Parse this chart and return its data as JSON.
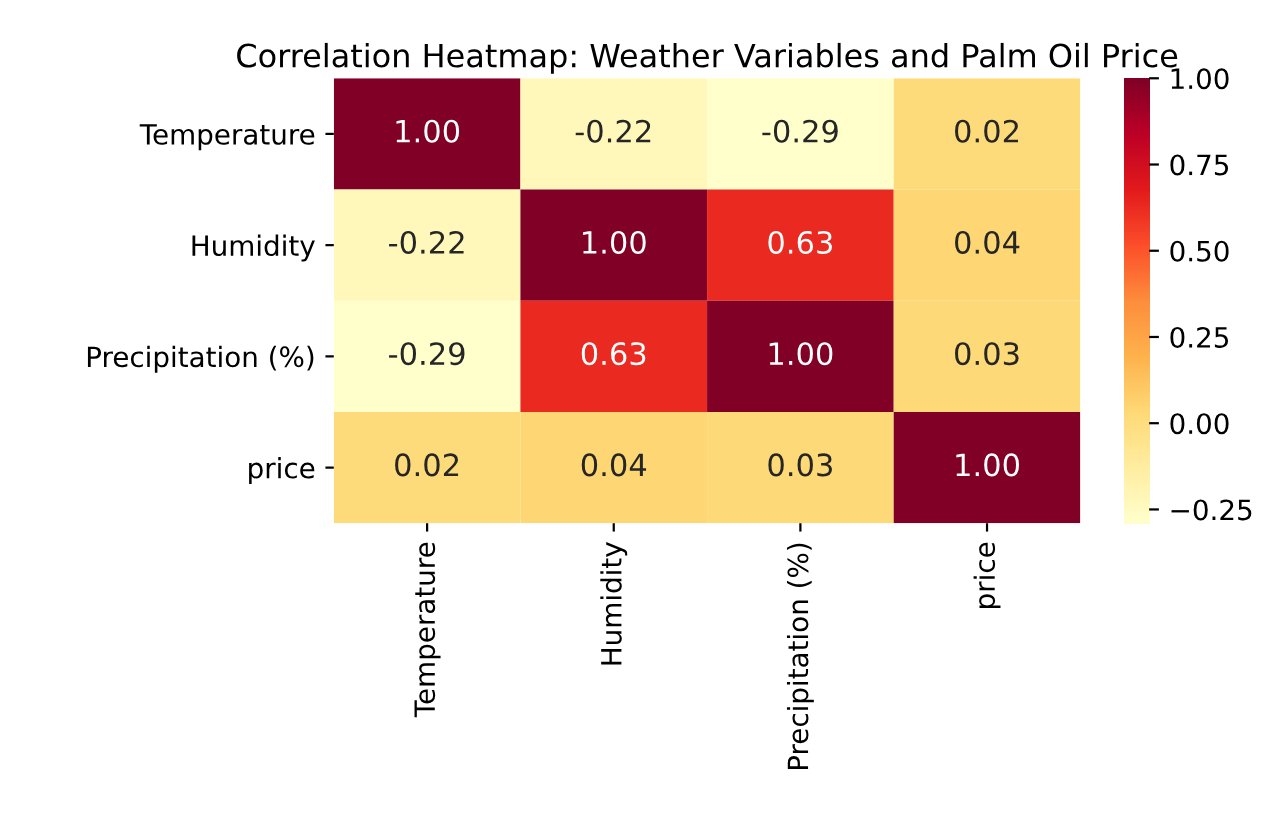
{
  "chart_data": {
    "type": "heatmap",
    "title": "Correlation Heatmap: Weather Variables and Palm Oil Price",
    "categories": [
      "Temperature",
      "Humidity",
      "Precipitation (%)",
      "price"
    ],
    "y_categories": [
      "Temperature",
      "Humidity",
      "Precipitation (%)",
      "price"
    ],
    "cells": [
      [
        1.0,
        -0.22,
        -0.29,
        0.02
      ],
      [
        -0.22,
        1.0,
        0.63,
        0.04
      ],
      [
        -0.29,
        0.63,
        1.0,
        0.03
      ],
      [
        0.02,
        0.04,
        0.03,
        1.0
      ]
    ],
    "cell_labels": [
      [
        "1.00",
        "-0.22",
        "-0.29",
        "0.02"
      ],
      [
        "-0.22",
        "1.00",
        "0.63",
        "0.04"
      ],
      [
        "-0.29",
        "0.63",
        "1.00",
        "0.03"
      ],
      [
        "0.02",
        "0.04",
        "0.03",
        "1.00"
      ]
    ],
    "clim": [
      -0.29,
      1.0
    ],
    "cticks": [
      {
        "value": -0.25,
        "label": "−0.25"
      },
      {
        "value": 0.0,
        "label": "0.00"
      },
      {
        "value": 0.25,
        "label": "0.25"
      },
      {
        "value": 0.5,
        "label": "0.50"
      },
      {
        "value": 0.75,
        "label": "0.75"
      },
      {
        "value": 1.0,
        "label": "1.00"
      }
    ],
    "data_labels": true
  }
}
